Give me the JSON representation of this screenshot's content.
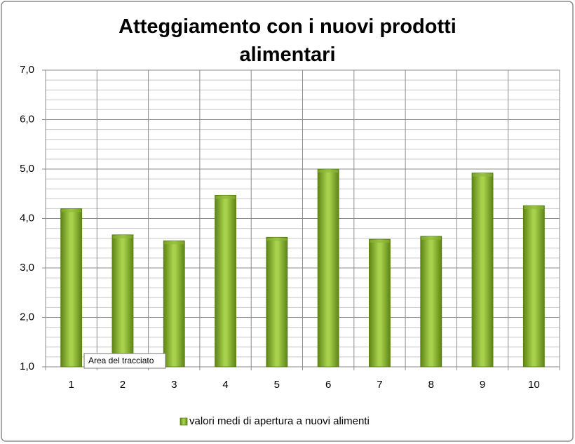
{
  "chart_data": {
    "type": "bar",
    "title": "Atteggiamento con i nuovi prodotti alimentari",
    "categories": [
      "1",
      "2",
      "3",
      "4",
      "5",
      "6",
      "7",
      "8",
      "9",
      "10"
    ],
    "series": [
      {
        "name": "valori medi di apertura a nuovi alimenti",
        "color": "#8cb838",
        "values": [
          4.2,
          3.67,
          3.55,
          4.47,
          3.62,
          5.0,
          3.58,
          3.64,
          4.92,
          4.26
        ]
      }
    ],
    "ylim": [
      1.0,
      7.0
    ],
    "yticks": [
      {
        "value": 1,
        "label": "1,0"
      },
      {
        "value": 2,
        "label": "2,0"
      },
      {
        "value": 3,
        "label": "3,0"
      },
      {
        "value": 4,
        "label": "4,0"
      },
      {
        "value": 5,
        "label": "5,0"
      },
      {
        "value": 6,
        "label": "6,0"
      },
      {
        "value": 7,
        "label": "7,0"
      }
    ],
    "minor_yticks": [
      1.2,
      1.4,
      1.6,
      1.8,
      2.2,
      2.4,
      2.6,
      2.8,
      3.2,
      3.4,
      3.6,
      3.8,
      4.2,
      4.4,
      4.6,
      4.8,
      5.2,
      5.4,
      5.6,
      5.8,
      6.2,
      6.4,
      6.6,
      6.8
    ],
    "grid": true,
    "legend": "bottom",
    "tooltip": "Area del tracciato"
  }
}
